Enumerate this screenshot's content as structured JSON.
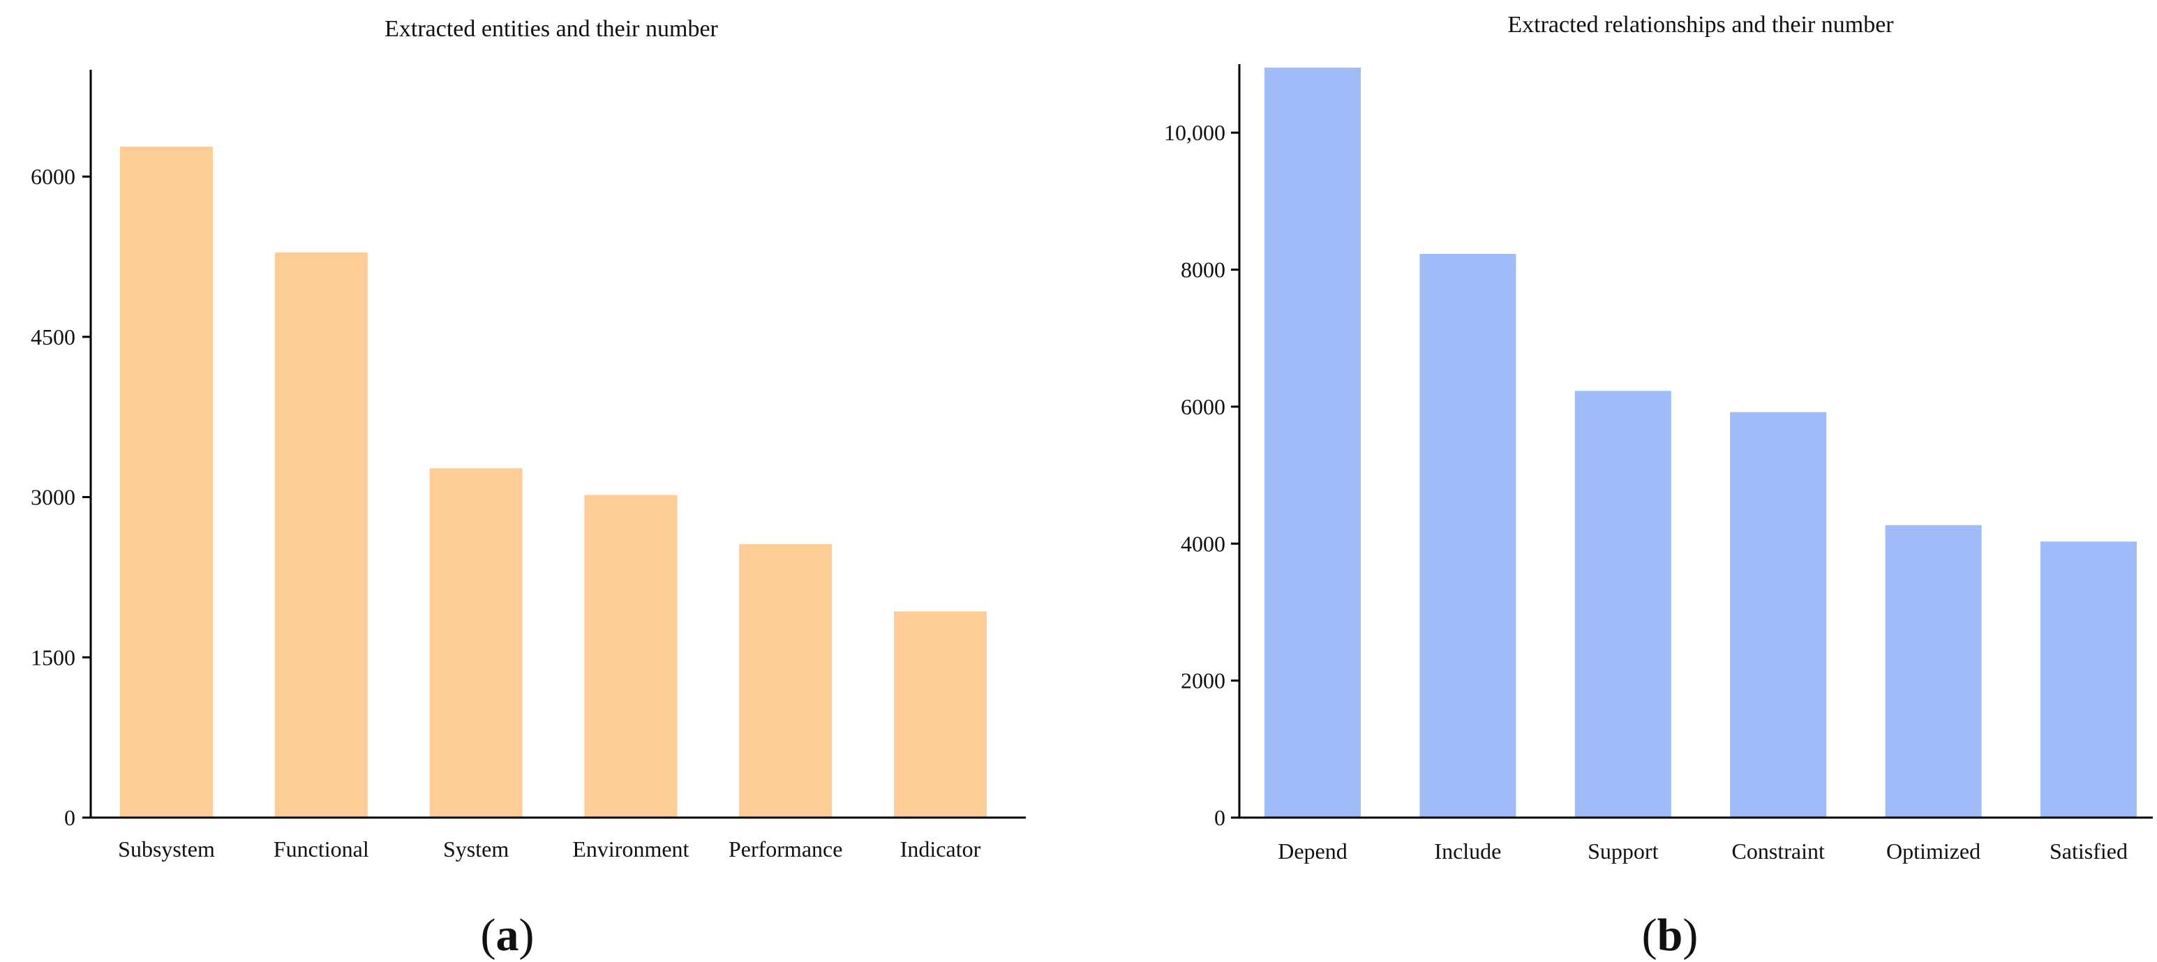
{
  "chart_data": [
    {
      "type": "bar",
      "panel": "a",
      "title": "Extracted entities and their number",
      "xlabel": "",
      "ylabel": "",
      "categories": [
        "Subsystem",
        "Functional",
        "System",
        "Environment",
        "Performance",
        "Indicator"
      ],
      "values": [
        6280,
        5290,
        3270,
        3020,
        2560,
        1930
      ],
      "yticks": [
        0,
        1500,
        3000,
        4500,
        6000
      ],
      "ytick_labels": [
        "0",
        "1500",
        "3000",
        "4500",
        "6000"
      ],
      "ylim": [
        0,
        7000
      ],
      "bar_color": "#fecd97",
      "grid": false,
      "legend": "none"
    },
    {
      "type": "bar",
      "panel": "b",
      "title": "Extracted relationships and their number",
      "xlabel": "",
      "ylabel": "",
      "categories": [
        "Depend",
        "Include",
        "Support",
        "Constraint",
        "Optimized",
        "Satisfied"
      ],
      "values": [
        10950,
        8230,
        6230,
        5920,
        4270,
        4030
      ],
      "yticks": [
        0,
        2000,
        4000,
        6000,
        8000,
        10000
      ],
      "ytick_labels": [
        "0",
        "2000",
        "4000",
        "6000",
        "8000",
        "10,000"
      ],
      "ylim": [
        0,
        11000
      ],
      "bar_color": "#9fbcf9",
      "grid": false,
      "legend": "none"
    }
  ],
  "panels": [
    {
      "open": "(",
      "letter": "a",
      "close": ")"
    },
    {
      "open": "(",
      "letter": "b",
      "close": ")"
    }
  ]
}
